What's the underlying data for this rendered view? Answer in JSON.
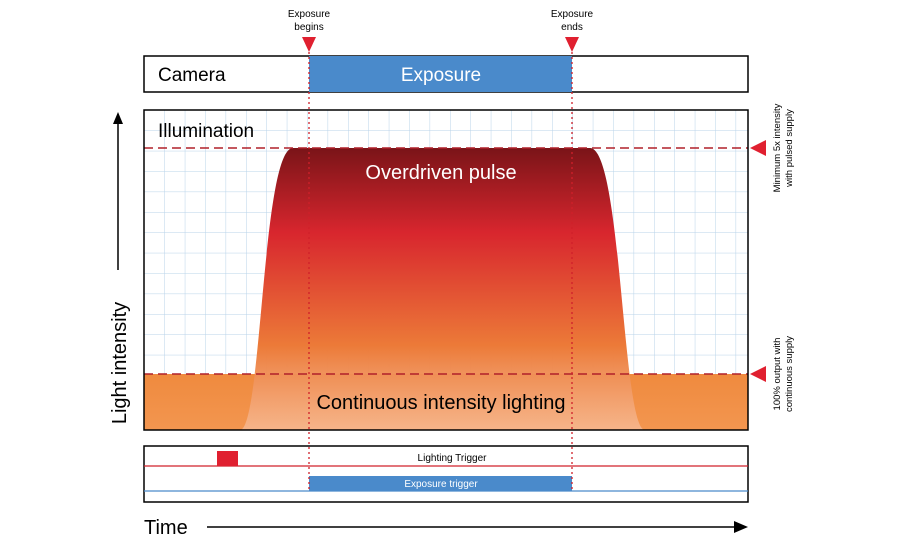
{
  "markers": {
    "exposure_begins": [
      "Exposure",
      "begins"
    ],
    "exposure_ends": [
      "Exposure",
      "ends"
    ]
  },
  "camera": {
    "label": "Camera",
    "exposure_label": "Exposure"
  },
  "illumination": {
    "label": "Illumination",
    "pulse_label": "Overdriven pulse",
    "continuous_label": "Continuous intensity lighting"
  },
  "side_notes": {
    "top": [
      "Minimum 5x intensity",
      "with pulsed supply"
    ],
    "bottom": [
      "100% output with",
      "continuous supply"
    ]
  },
  "triggers": {
    "lighting_label": "Lighting Trigger",
    "exposure_label": "Exposure trigger"
  },
  "axes": {
    "y_label": "Light intensity",
    "x_label": "Time"
  },
  "colors": {
    "exposure_blue": "#4a8acb",
    "marker_red": "#e02030",
    "pulse_top": "#7a1418",
    "pulse_mid": "#d8262e",
    "pulse_low": "#ec7a38",
    "continuous_orange": "#f08c40",
    "grid_blue": "#b9d3ea"
  }
}
